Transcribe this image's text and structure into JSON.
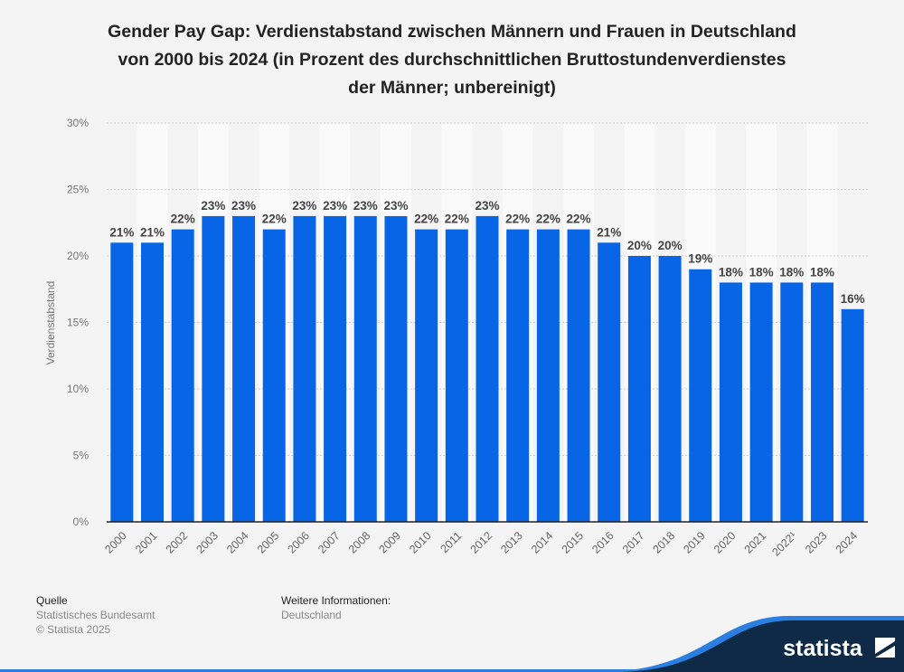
{
  "chart_data": {
    "type": "bar",
    "title": "Gender Pay Gap: Verdienstabstand zwischen Männern und Frauen in Deutschland von 2000 bis 2024 (in Prozent des durchschnittlichen Bruttostundenverdienstes der Männer; unbereinigt)",
    "title_lines": [
      "Gender Pay Gap: Verdienstabstand zwischen Männern und Frauen in Deutschland",
      "von 2000 bis 2024 (in Prozent des durchschnittlichen Bruttostundenverdienstes",
      "der Männer; unbereinigt)"
    ],
    "xlabel": "",
    "ylabel": "Verdienstabstand",
    "ylim": [
      0,
      30
    ],
    "yticks": [
      0,
      5,
      10,
      15,
      20,
      25,
      30
    ],
    "ytick_labels": [
      "0%",
      "5%",
      "10%",
      "15%",
      "20%",
      "25%",
      "30%"
    ],
    "grid": true,
    "categories": [
      "2000",
      "2001",
      "2002",
      "2003",
      "2004",
      "2005",
      "2006",
      "2007",
      "2008",
      "2009",
      "2010",
      "2011",
      "2012",
      "2013",
      "2014",
      "2015",
      "2016",
      "2017",
      "2018",
      "2019",
      "2020",
      "2021",
      "2022¹",
      "2023",
      "2024"
    ],
    "values": [
      21,
      21,
      22,
      23,
      23,
      22,
      23,
      23,
      23,
      23,
      22,
      22,
      23,
      22,
      22,
      22,
      21,
      20,
      20,
      19,
      18,
      18,
      18,
      18,
      16
    ],
    "data_labels": [
      "21%",
      "21%",
      "22%",
      "23%",
      "23%",
      "22%",
      "23%",
      "23%",
      "23%",
      "23%",
      "22%",
      "22%",
      "23%",
      "22%",
      "22%",
      "22%",
      "21%",
      "20%",
      "20%",
      "19%",
      "18%",
      "18%",
      "18%",
      "18%",
      "16%"
    ],
    "bar_color": "#0866e6"
  },
  "footer": {
    "source_heading": "Quelle",
    "source": "Statistisches Bundesamt",
    "copyright": "© Statista 2025",
    "info_heading": "Weitere Informationen:",
    "info": "Deutschland",
    "logo_text": "statista",
    "logo_color": "#0e2a47",
    "accent_color": "#2b7fe0"
  }
}
